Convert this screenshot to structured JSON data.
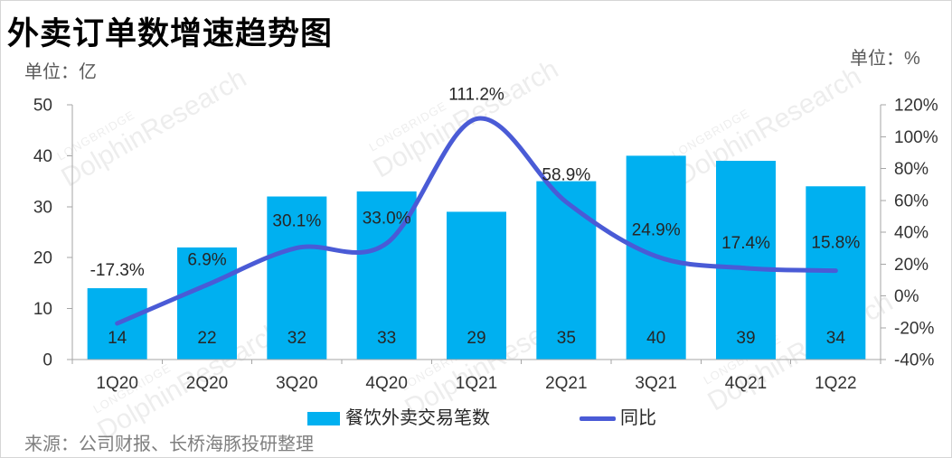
{
  "chart_data": {
    "type": "bar",
    "title": "外卖订单数增速趋势图",
    "categories": [
      "1Q20",
      "2Q20",
      "3Q20",
      "4Q20",
      "1Q21",
      "2Q21",
      "3Q21",
      "4Q21",
      "1Q22"
    ],
    "series": [
      {
        "name": "餐饮外卖交易笔数",
        "type": "bar",
        "y_axis": "left",
        "color": "#00B0F0",
        "values": [
          14,
          22,
          32,
          33,
          29,
          35,
          40,
          39,
          34
        ]
      },
      {
        "name": "同比",
        "type": "line",
        "y_axis": "right",
        "smooth": true,
        "color": "#4A5BD6",
        "values": [
          -17.3,
          6.9,
          30.1,
          33.0,
          111.2,
          58.9,
          24.9,
          17.4,
          15.8
        ],
        "labels": [
          "-17.3%",
          "6.9%",
          "30.1%",
          "33.0%",
          "111.2%",
          "58.9%",
          "24.9%",
          "17.4%",
          "15.8%"
        ]
      }
    ],
    "y_left": {
      "unit_label": "单位：亿",
      "range": [
        0,
        50
      ],
      "ticks": [
        {
          "value": 0,
          "label": "0"
        },
        {
          "value": 10,
          "label": "10"
        },
        {
          "value": 20,
          "label": "20"
        },
        {
          "value": 30,
          "label": "30"
        },
        {
          "value": 40,
          "label": "40"
        },
        {
          "value": 50,
          "label": "50"
        }
      ]
    },
    "y_right": {
      "unit_label": "单位：%",
      "range": [
        -40,
        120
      ],
      "ticks": [
        {
          "value": -40,
          "label": "-40%"
        },
        {
          "value": -20,
          "label": "-20%"
        },
        {
          "value": 0,
          "label": "0%"
        },
        {
          "value": 20,
          "label": "20%"
        },
        {
          "value": 40,
          "label": "40%"
        },
        {
          "value": 60,
          "label": "60%"
        },
        {
          "value": 80,
          "label": "80%"
        },
        {
          "value": 100,
          "label": "100%"
        },
        {
          "value": 120,
          "label": "120%"
        }
      ]
    },
    "grid": false,
    "legend": {
      "position": "bottom"
    }
  },
  "source": "来源：公司财报、长桥海豚投研整理",
  "watermark": {
    "brand": "LONGBRIDGE",
    "text": "DolphinResearch"
  }
}
